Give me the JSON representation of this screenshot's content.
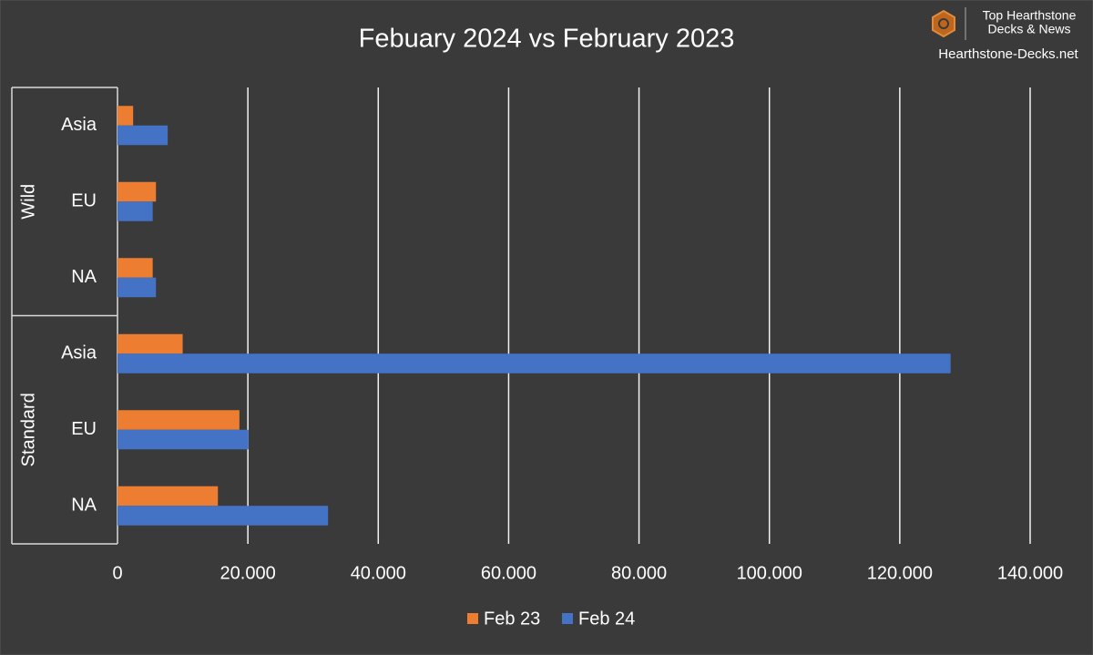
{
  "chart_data": {
    "type": "bar",
    "orientation": "horizontal",
    "title": "Febuary 2024 vs February 2023",
    "groups": [
      {
        "label": "Wild",
        "categories": [
          "Asia",
          "EU",
          "NA"
        ]
      },
      {
        "label": "Standard",
        "categories": [
          "Asia",
          "EU",
          "NA"
        ]
      }
    ],
    "series": [
      {
        "name": "Feb 23",
        "color": "#ed7d31",
        "values": [
          2400,
          5900,
          5400,
          10000,
          18700,
          15400
        ]
      },
      {
        "name": "Feb 24",
        "color": "#4472c4",
        "values": [
          7700,
          5400,
          5900,
          127800,
          20100,
          32300
        ]
      }
    ],
    "xlim": [
      0,
      140000
    ],
    "xticks": [
      0,
      {
        "value": 20000,
        "label": "20.000"
      },
      {
        "value": 40000,
        "label": "40.000"
      },
      {
        "value": 60000,
        "label": "60.000"
      },
      {
        "value": 80000,
        "label": "80.000"
      },
      {
        "value": 100000,
        "label": "100.000"
      },
      {
        "value": 120000,
        "label": "120.000"
      },
      {
        "value": 140000,
        "label": "140.000"
      }
    ],
    "grid": true,
    "legend": "bottom"
  },
  "watermark": {
    "line1": "Top Hearthstone",
    "line2": "Decks & News",
    "site": "Hearthstone-Decks.net"
  }
}
